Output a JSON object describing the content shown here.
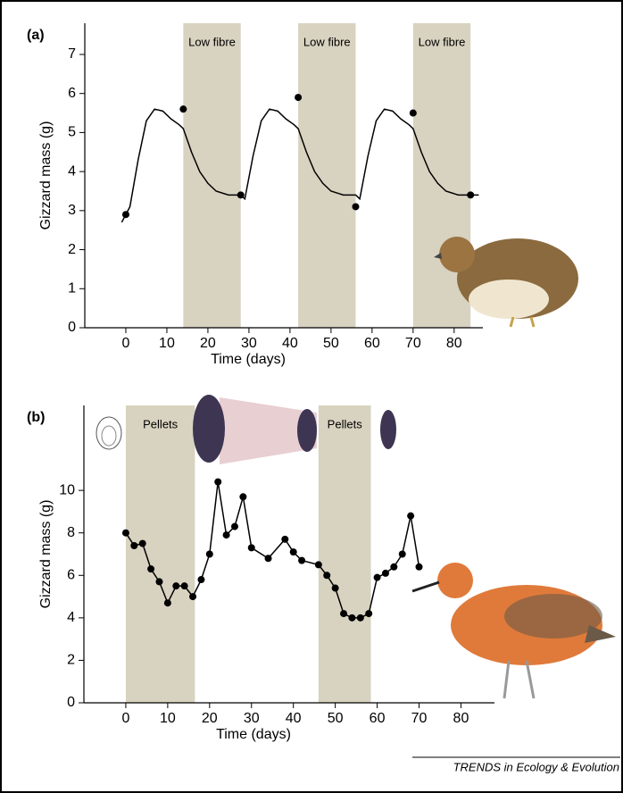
{
  "chart_data": [
    {
      "type": "line",
      "panel_label": "(a)",
      "ylabel": "Gizzard mass (g)",
      "xlabel": "Time (days)",
      "xlim": [
        -10,
        87
      ],
      "ylim": [
        0,
        7.8
      ],
      "xticks": [
        0,
        10,
        20,
        30,
        40,
        50,
        60,
        70,
        80
      ],
      "yticks": [
        0,
        1,
        2,
        3,
        4,
        5,
        6,
        7
      ],
      "band_color": "#d8d2c0",
      "bands": [
        {
          "start": 14,
          "end": 28,
          "label": "Low fibre"
        },
        {
          "start": 42,
          "end": 56,
          "label": "Low fibre"
        },
        {
          "start": 70,
          "end": 84,
          "label": "Low fibre"
        }
      ],
      "series": [
        {
          "mode": "line",
          "color": "#000000",
          "x": [
            -1,
            1,
            3,
            5,
            7,
            9,
            11,
            13,
            14,
            16,
            18,
            20,
            22,
            25,
            28,
            29,
            31,
            33,
            35,
            37,
            39,
            41,
            42,
            44,
            46,
            48,
            50,
            53,
            56,
            57,
            59,
            61,
            63,
            65,
            67,
            69,
            70,
            72,
            74,
            76,
            78,
            81,
            84,
            86
          ],
          "values": [
            2.7,
            3.1,
            4.3,
            5.3,
            5.6,
            5.55,
            5.35,
            5.2,
            5.1,
            4.5,
            4.0,
            3.7,
            3.5,
            3.4,
            3.4,
            3.3,
            4.4,
            5.3,
            5.6,
            5.55,
            5.35,
            5.2,
            5.1,
            4.5,
            4.0,
            3.7,
            3.5,
            3.4,
            3.4,
            3.3,
            4.4,
            5.3,
            5.6,
            5.55,
            5.35,
            5.2,
            5.1,
            4.5,
            4.0,
            3.7,
            3.5,
            3.4,
            3.4,
            3.4
          ]
        },
        {
          "mode": "markers",
          "color": "#000000",
          "x": [
            0,
            14,
            28,
            42,
            56,
            70,
            84
          ],
          "values": [
            2.9,
            5.6,
            3.4,
            5.9,
            3.1,
            5.5,
            3.4
          ]
        }
      ]
    },
    {
      "type": "line",
      "panel_label": "(b)",
      "ylabel": "Gizzard mass (g)",
      "xlabel": "Time (days)",
      "xlim": [
        -10,
        88
      ],
      "ylim": [
        0,
        14
      ],
      "xticks": [
        0,
        10,
        20,
        30,
        40,
        50,
        60,
        70,
        80
      ],
      "yticks": [
        0,
        2,
        4,
        6,
        8,
        10
      ],
      "band_color": "#d8d2c0",
      "bands": [
        {
          "start": 0,
          "end": 16.5,
          "label": "Pellets"
        },
        {
          "start": 46,
          "end": 58.5,
          "label": "Pellets"
        }
      ],
      "series": [
        {
          "mode": "line+markers",
          "color": "#000000",
          "x": [
            0,
            2,
            4,
            6,
            8,
            10,
            12,
            14,
            16,
            18,
            20,
            22,
            24,
            26,
            28,
            30,
            34,
            38,
            40,
            42,
            46,
            48,
            50,
            52,
            54,
            56,
            58,
            60,
            62,
            64,
            66,
            68,
            70
          ],
          "values": [
            8.0,
            7.4,
            7.5,
            6.3,
            5.7,
            4.7,
            5.5,
            5.5,
            5.0,
            5.8,
            7.0,
            10.4,
            7.9,
            8.3,
            9.7,
            7.3,
            6.8,
            7.7,
            7.1,
            6.7,
            6.5,
            6.0,
            5.4,
            4.2,
            4.0,
            4.0,
            4.2,
            5.9,
            6.1,
            6.4,
            7.0,
            8.8,
            6.4
          ]
        }
      ]
    }
  ],
  "footer": "TRENDS in Ecology & Evolution"
}
